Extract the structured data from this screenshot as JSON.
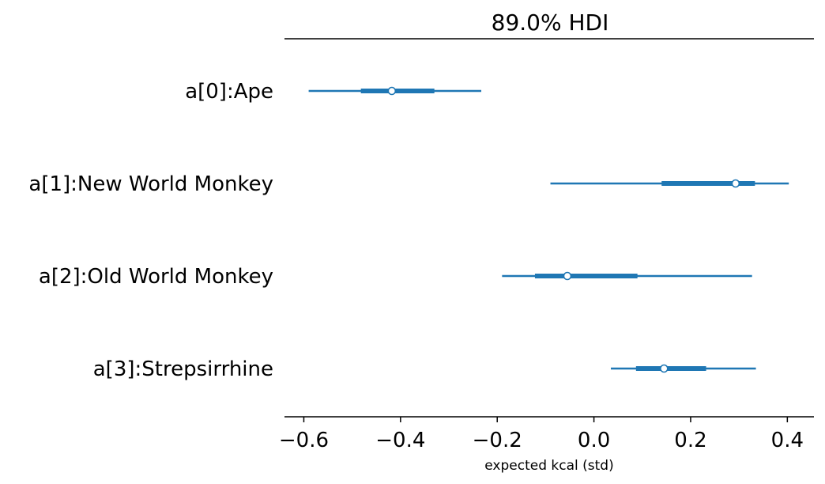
{
  "chart_data": {
    "type": "forest",
    "title": "89.0% HDI",
    "xlabel": "expected kcal (std)",
    "xlim": [
      -0.64,
      0.455
    ],
    "xticks": [
      -0.6,
      -0.4,
      -0.2,
      0.0,
      0.2,
      0.4
    ],
    "xtick_labels": [
      "−0.6",
      "−0.4",
      "−0.2",
      "0.0",
      "0.2",
      "0.4"
    ],
    "color": "#1f77b4",
    "series": [
      {
        "label": "a[0]:Ape",
        "hdi_low": -0.59,
        "hdi_high": -0.233,
        "iqr_low": -0.482,
        "iqr_high": -0.33,
        "point": -0.418
      },
      {
        "label": "a[1]:New World Monkey",
        "hdi_low": -0.09,
        "hdi_high": 0.403,
        "iqr_low": 0.14,
        "iqr_high": 0.333,
        "point": 0.293
      },
      {
        "label": "a[2]:Old World Monkey",
        "hdi_low": -0.19,
        "hdi_high": 0.327,
        "iqr_low": -0.122,
        "iqr_high": 0.09,
        "point": -0.055
      },
      {
        "label": "a[3]:Strepsirrhine",
        "hdi_low": 0.035,
        "hdi_high": 0.335,
        "iqr_low": 0.087,
        "iqr_high": 0.232,
        "point": 0.145
      }
    ]
  }
}
